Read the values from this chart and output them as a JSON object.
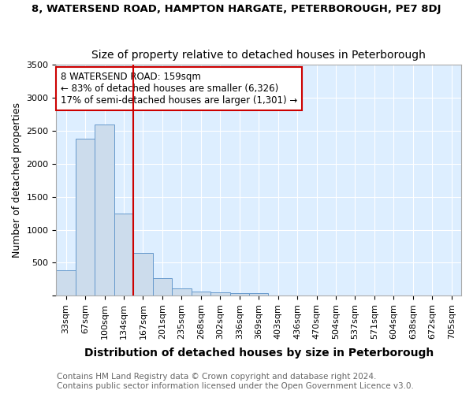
{
  "title1": "8, WATERSEND ROAD, HAMPTON HARGATE, PETERBOROUGH, PE7 8DJ",
  "title2": "Size of property relative to detached houses in Peterborough",
  "xlabel": "Distribution of detached houses by size in Peterborough",
  "ylabel": "Number of detached properties",
  "categories": [
    "33sqm",
    "67sqm",
    "100sqm",
    "134sqm",
    "167sqm",
    "201sqm",
    "235sqm",
    "268sqm",
    "302sqm",
    "336sqm",
    "369sqm",
    "403sqm",
    "436sqm",
    "470sqm",
    "504sqm",
    "537sqm",
    "571sqm",
    "604sqm",
    "638sqm",
    "672sqm",
    "705sqm"
  ],
  "values": [
    380,
    2380,
    2600,
    1250,
    650,
    270,
    110,
    65,
    50,
    40,
    40,
    0,
    0,
    0,
    0,
    0,
    0,
    0,
    0,
    0,
    0
  ],
  "bar_color": "#ccdcec",
  "bar_edge_color": "#6699cc",
  "annotation_text": "8 WATERSEND ROAD: 159sqm\n← 83% of detached houses are smaller (6,326)\n17% of semi-detached houses are larger (1,301) →",
  "annotation_box_color": "#ffffff",
  "annotation_box_edge": "#cc0000",
  "bg_color": "#ffffff",
  "plot_bg_color": "#ddeeff",
  "footer": "Contains HM Land Registry data © Crown copyright and database right 2024.\nContains public sector information licensed under the Open Government Licence v3.0.",
  "ylim": [
    0,
    3500
  ],
  "yticks": [
    0,
    500,
    1000,
    1500,
    2000,
    2500,
    3000,
    3500
  ],
  "title1_fontsize": 9.5,
  "title2_fontsize": 10,
  "xlabel_fontsize": 10,
  "ylabel_fontsize": 9,
  "tick_fontsize": 8,
  "footer_fontsize": 7.5,
  "red_line_color": "#cc0000",
  "red_line_index": 4,
  "grid_color": "#ffffff",
  "annot_fontsize": 8.5
}
